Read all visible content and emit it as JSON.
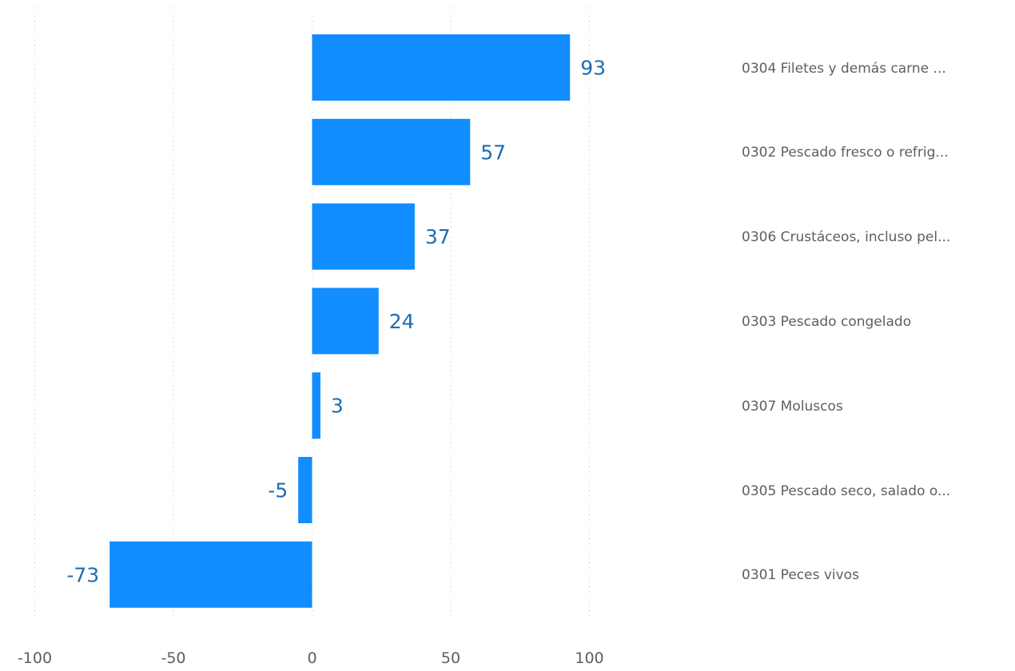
{
  "chart_data": {
    "type": "bar",
    "orientation": "horizontal",
    "categories": [
      "0304 Filetes y demás carne ...",
      "0302 Pescado fresco o refrig...",
      "0306 Crustáceos, incluso pel...",
      "0303 Pescado congelado",
      "0307 Moluscos",
      "0305 Pescado seco, salado o...",
      "0301 Peces vivos"
    ],
    "values": [
      93,
      57,
      37,
      24,
      3,
      -5,
      -73
    ],
    "data_labels": [
      "93",
      "57",
      "37",
      "24",
      "3",
      "-5",
      "-73"
    ],
    "x_ticks": [
      "-100",
      "-50",
      "0",
      "50",
      "100"
    ],
    "x_tick_values": [
      -100,
      -50,
      0,
      50,
      100
    ],
    "xlim": [
      -100,
      100
    ],
    "grid": "vertical dotted",
    "category_labels_position": "right",
    "colors": {
      "bar": "#118DFF",
      "data_label": "#1F6CB0",
      "axis_text": "#605E5C",
      "grid": "#C8C6C4"
    }
  }
}
